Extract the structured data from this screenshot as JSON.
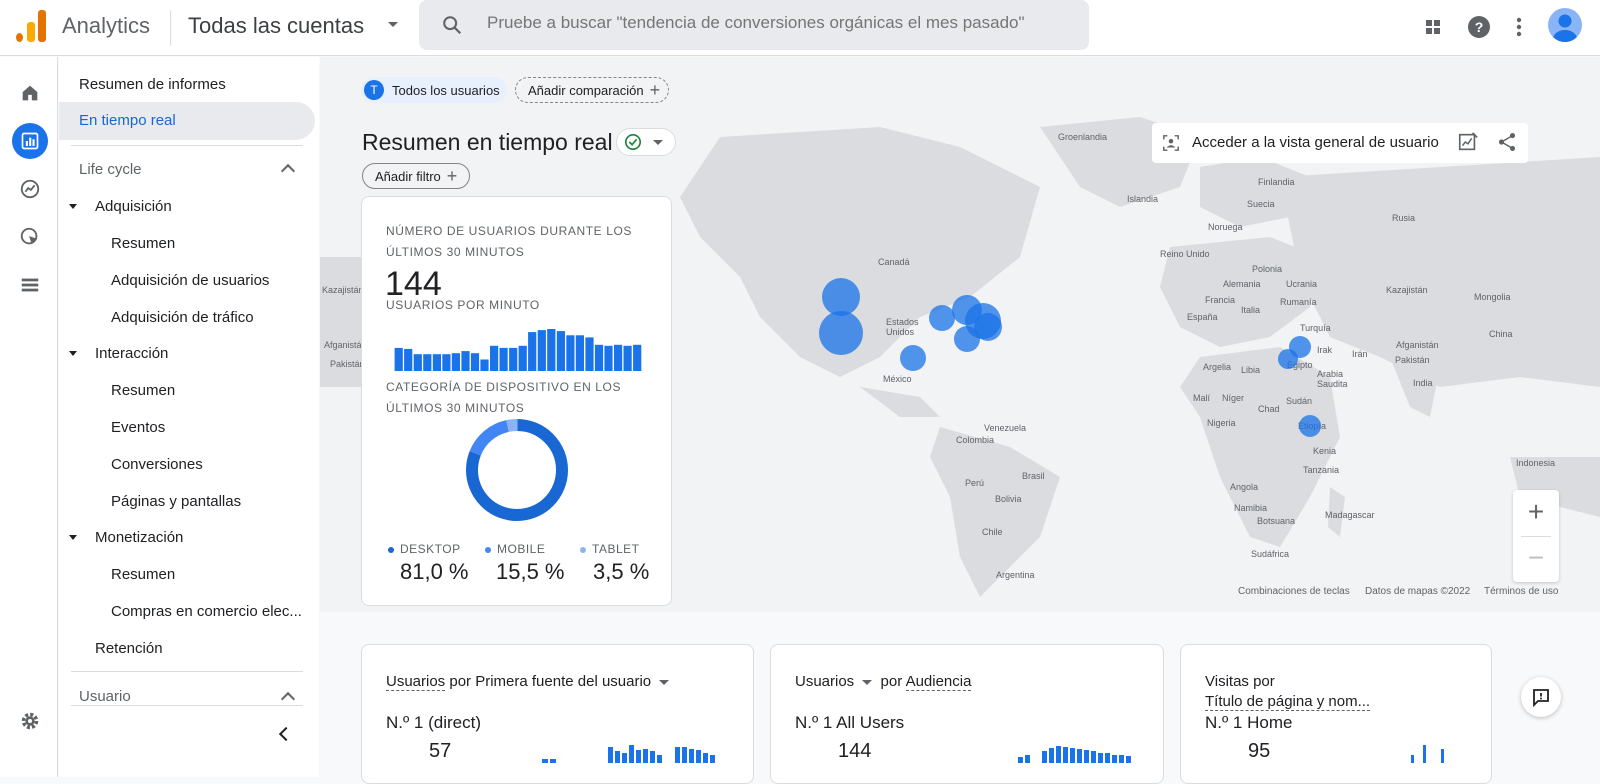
{
  "header": {
    "brand": "Analytics",
    "account": "Todas las cuentas",
    "search_placeholder": "Pruebe a buscar \"tendencia de conversiones orgánicas el mes pasado\"",
    "icons": [
      "apps-icon",
      "help-icon",
      "more-vert-icon",
      "avatar"
    ]
  },
  "rail": {
    "icons": [
      "home-icon",
      "reports-icon",
      "explore-icon",
      "advertising-icon",
      "configure-icon",
      "settings-icon"
    ]
  },
  "nav": {
    "reports_snapshot": "Resumen de informes",
    "realtime": "En tiempo real",
    "section_lifecycle": "Life cycle",
    "acquisition": "Adquisición",
    "acq_overview": "Resumen",
    "acq_user": "Adquisición de usuarios",
    "acq_traffic": "Adquisición de tráfico",
    "engagement": "Interacción",
    "eng_overview": "Resumen",
    "eng_events": "Eventos",
    "eng_conversions": "Conversiones",
    "eng_pages": "Páginas y pantallas",
    "monetization": "Monetización",
    "mon_overview": "Resumen",
    "mon_ecommerce": "Compras en comercio elec...",
    "retention": "Retención",
    "section_user": "Usuario"
  },
  "toolbar": {
    "segment_initial": "T",
    "segment": "Todos los usuarios",
    "add_comparison": "Añadir comparación",
    "title": "Resumen en tiempo real",
    "add_filter": "Añadir filtro",
    "user_overview": "Acceder a la vista general de usuario"
  },
  "summary_card": {
    "users_label": "NÚMERO DE USUARIOS DURANTE LOS ÚLTIMOS 30 MINUTOS",
    "users_value": "144",
    "per_minute_label": "USUARIOS POR MINUTO",
    "per_minute_values": [
      22,
      21,
      16,
      16,
      16,
      16,
      17,
      19,
      17,
      11,
      24,
      22,
      22,
      24,
      37,
      39,
      40,
      38,
      34,
      34,
      32,
      25,
      24,
      25,
      24,
      25
    ],
    "device_label": "CATEGORÍA DE DISPOSITIVO EN LOS ÚLTIMOS 30 MINUTOS",
    "devices": [
      {
        "name": "DESKTOP",
        "value": "81,0 %",
        "share": 81.0,
        "color": "#1967d2"
      },
      {
        "name": "MOBILE",
        "value": "15,5 %",
        "share": 15.5,
        "color": "#4285f4"
      },
      {
        "name": "TABLET",
        "value": "3,5 %",
        "share": 3.5,
        "color": "#8ab4f8"
      }
    ]
  },
  "map": {
    "labels": [
      "Groenlandia",
      "Islandia",
      "Finlandia",
      "Suecia",
      "Noruega",
      "Rusia",
      "Canadá",
      "Reino Unido",
      "Polonia",
      "Alemania",
      "Ucrania",
      "Kazajistán",
      "Mongolia",
      "Francia",
      "Rumanía",
      "España",
      "Italia",
      "Turquía",
      "China",
      "Estados Unidos",
      "Afganistán",
      "Irak",
      "Irán",
      "Pakistán",
      "Argelia",
      "Libia",
      "Egipto",
      "Arabia Saudita",
      "India",
      "México",
      "Malí",
      "Níger",
      "Chad",
      "Sudán",
      "Etiopía",
      "Nigeria",
      "Venezuela",
      "Colombia",
      "Kenia",
      "Tanzania",
      "Indonesia",
      "Brasil",
      "Perú",
      "Bolivia",
      "Angola",
      "Namibia",
      "Madagascar",
      "Botsuana",
      "Chile",
      "Sudáfrica",
      "Argentina",
      "Kazajistán",
      "Afganistán",
      "Pakistán"
    ],
    "keyboard": "Combinaciones de teclas",
    "mapdata": "Datos de mapas ©2022",
    "terms": "Términos de uso",
    "zoom_in": "+",
    "zoom_out": "−"
  },
  "bottom_cards": [
    {
      "title_a": "Usuarios",
      "title_b": "por Primera fuente del usuario",
      "rank": "N.º 1  (direct)",
      "value": "57"
    },
    {
      "title_a": "Usuarios",
      "title_b": "por",
      "title_c": "Audiencia",
      "rank": "N.º 1  All Users",
      "value": "144"
    },
    {
      "title_a": "Visitas por",
      "title_b": "Título de página y nom...",
      "rank": "N.º 1  Home",
      "value": "95"
    }
  ]
}
